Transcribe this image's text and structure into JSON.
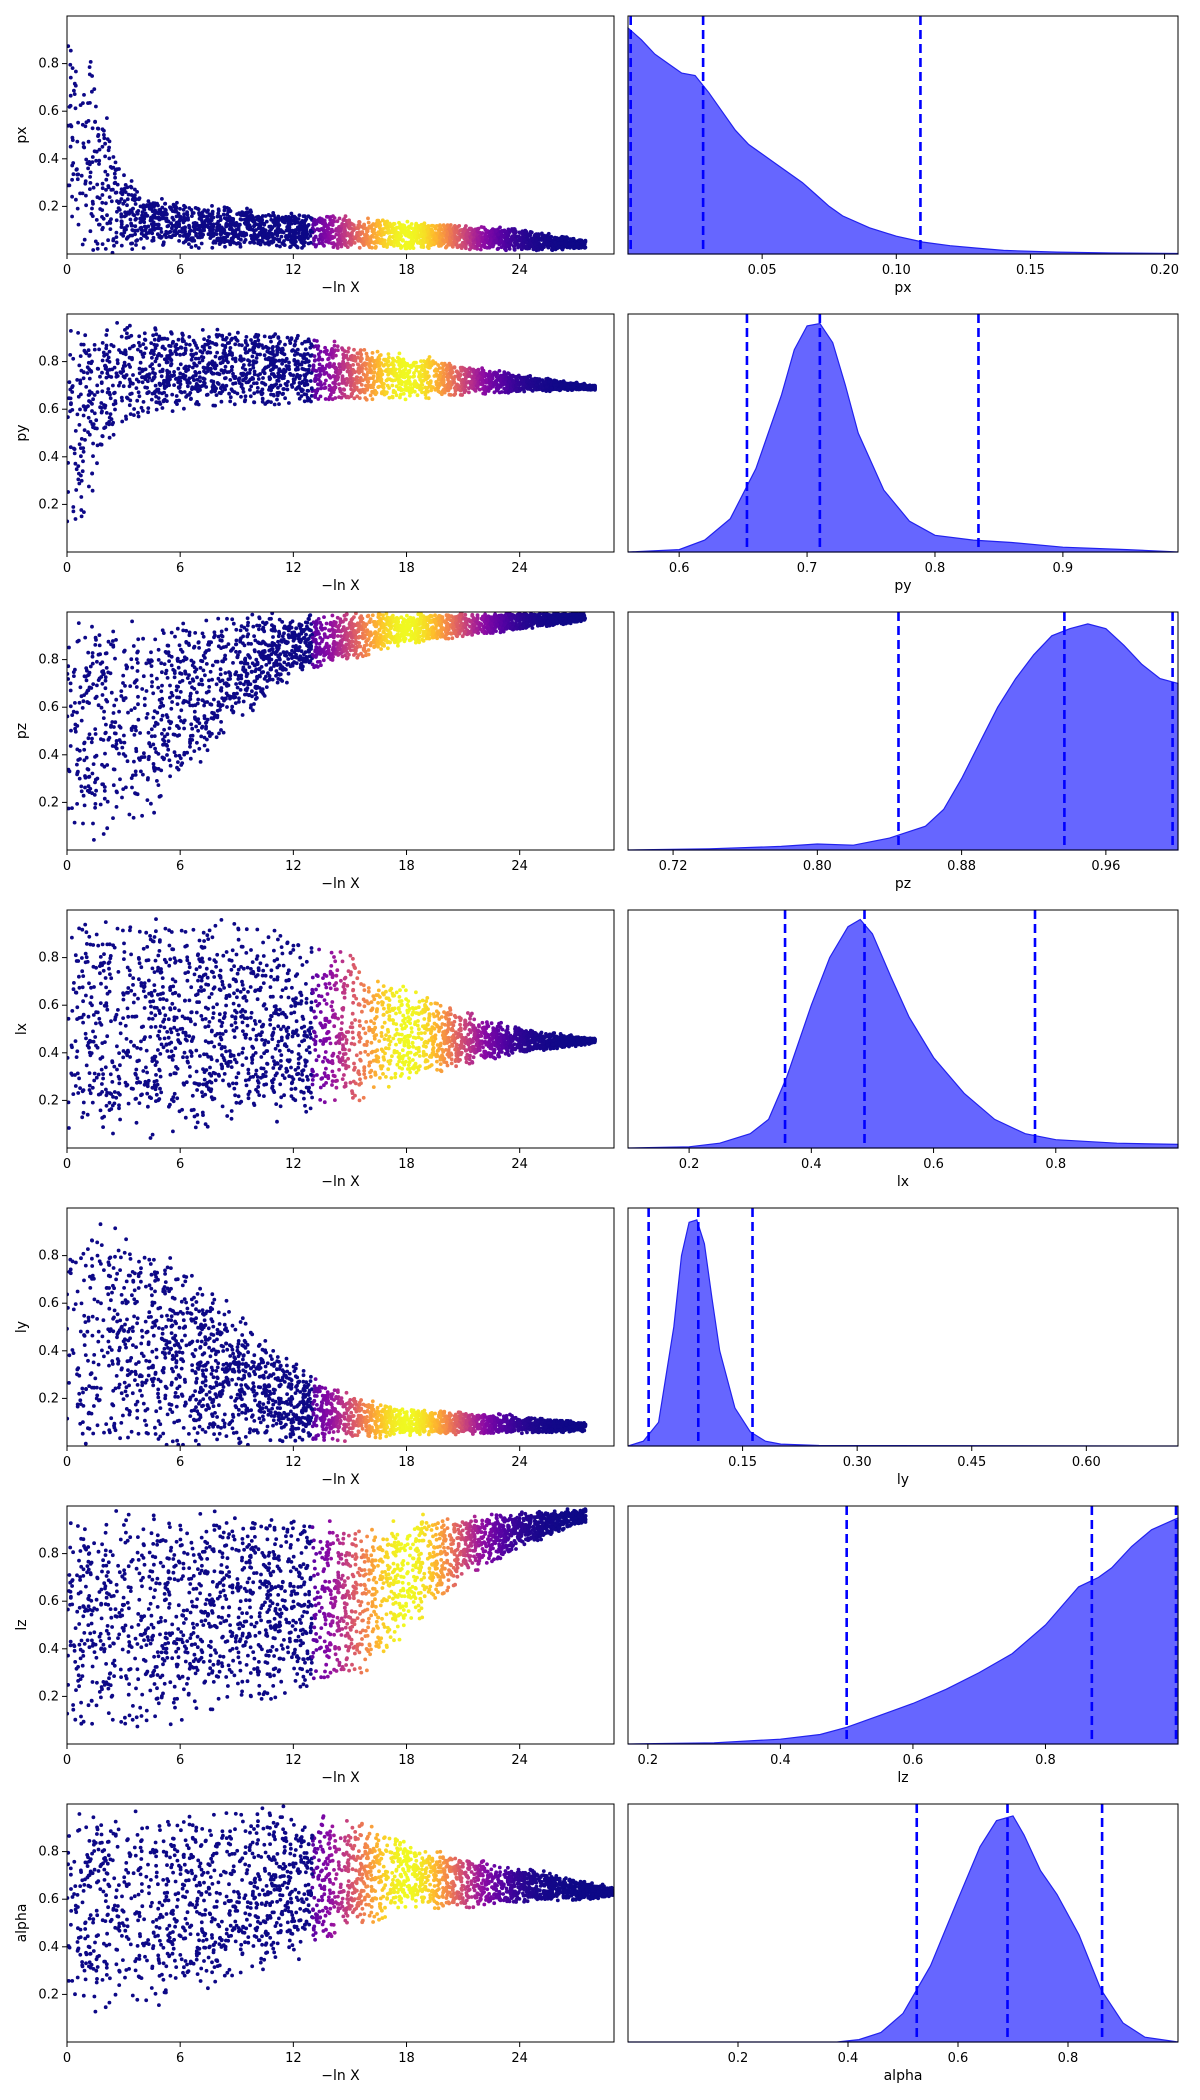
{
  "figure": {
    "description_rows": 7,
    "colors": {
      "posterior": "#3333ff",
      "posterior_edge": "#2222ee",
      "quantile_line": "#0000ff",
      "trace_cold": "#0d0887",
      "trace_hot": "#f0f921"
    }
  },
  "chart_data": [
    {
      "type": "scatter",
      "title": "",
      "xlabel": "−ln X",
      "ylabel": "px",
      "xlim": [
        0,
        29
      ],
      "ylim": [
        0,
        1
      ],
      "xticks": [
        0,
        6,
        12,
        18,
        24
      ],
      "yticks": [
        0.2,
        0.4,
        0.6,
        0.8
      ],
      "xtick_labels": [
        "0",
        "6",
        "12",
        "18",
        "24"
      ],
      "ytick_labels": [
        "0.2",
        "0.4",
        "0.6",
        "0.8"
      ],
      "trend": {
        "x": [
          0,
          1,
          2,
          3,
          4,
          6,
          12,
          18,
          24,
          27.5
        ],
        "center": [
          0.55,
          0.45,
          0.3,
          0.18,
          0.14,
          0.12,
          0.1,
          0.08,
          0.06,
          0.04
        ],
        "spread": [
          0.45,
          0.5,
          0.35,
          0.2,
          0.12,
          0.1,
          0.08,
          0.06,
          0.05,
          0.02
        ]
      },
      "peak_x": 18
    },
    {
      "type": "area",
      "title": "",
      "xlabel": "px",
      "ylabel": "",
      "xlim": [
        0,
        0.205
      ],
      "xticks": [
        0.05,
        0.1,
        0.15,
        0.2
      ],
      "xtick_labels": [
        "0.05",
        "0.10",
        "0.15",
        "0.20"
      ],
      "x": [
        0,
        0.005,
        0.01,
        0.015,
        0.02,
        0.025,
        0.03,
        0.035,
        0.04,
        0.045,
        0.05,
        0.055,
        0.06,
        0.065,
        0.07,
        0.075,
        0.08,
        0.09,
        0.1,
        0.11,
        0.12,
        0.13,
        0.14,
        0.16,
        0.18,
        0.205
      ],
      "density": [
        0.95,
        0.9,
        0.84,
        0.8,
        0.76,
        0.75,
        0.68,
        0.6,
        0.52,
        0.46,
        0.42,
        0.38,
        0.34,
        0.3,
        0.25,
        0.2,
        0.16,
        0.11,
        0.075,
        0.05,
        0.035,
        0.025,
        0.015,
        0.008,
        0.004,
        0.002
      ],
      "quantiles": [
        0.001,
        0.028,
        0.109
      ]
    },
    {
      "type": "scatter",
      "title": "",
      "xlabel": "−ln X",
      "ylabel": "py",
      "xlim": [
        0,
        29
      ],
      "ylim": [
        0,
        1
      ],
      "xticks": [
        0,
        6,
        12,
        18,
        24
      ],
      "yticks": [
        0.2,
        0.4,
        0.6,
        0.8
      ],
      "xtick_labels": [
        "0",
        "6",
        "12",
        "18",
        "24"
      ],
      "ytick_labels": [
        "0.2",
        "0.4",
        "0.6",
        "0.8"
      ],
      "trend": {
        "x": [
          0,
          1,
          2,
          3,
          4,
          6,
          12,
          18,
          24,
          28
        ],
        "center": [
          0.5,
          0.55,
          0.68,
          0.75,
          0.76,
          0.77,
          0.77,
          0.74,
          0.71,
          0.69
        ],
        "spread": [
          0.5,
          0.45,
          0.3,
          0.22,
          0.2,
          0.18,
          0.16,
          0.1,
          0.04,
          0.01
        ]
      },
      "peak_x": 18
    },
    {
      "type": "area",
      "title": "",
      "xlabel": "py",
      "ylabel": "",
      "xlim": [
        0.56,
        0.99
      ],
      "xticks": [
        0.6,
        0.7,
        0.8,
        0.9
      ],
      "xtick_labels": [
        "0.6",
        "0.7",
        "0.8",
        "0.9"
      ],
      "x": [
        0.56,
        0.6,
        0.62,
        0.64,
        0.66,
        0.68,
        0.69,
        0.7,
        0.71,
        0.72,
        0.73,
        0.74,
        0.76,
        0.78,
        0.8,
        0.83,
        0.86,
        0.9,
        0.95,
        0.99
      ],
      "density": [
        0.0,
        0.01,
        0.05,
        0.14,
        0.35,
        0.66,
        0.85,
        0.95,
        0.96,
        0.88,
        0.7,
        0.5,
        0.26,
        0.13,
        0.07,
        0.05,
        0.04,
        0.02,
        0.01,
        0.0
      ],
      "quantiles": [
        0.653,
        0.71,
        0.834
      ]
    },
    {
      "type": "scatter",
      "title": "",
      "xlabel": "−ln X",
      "ylabel": "pz",
      "xlim": [
        0,
        29
      ],
      "ylim": [
        0,
        1
      ],
      "xticks": [
        0,
        6,
        12,
        18,
        24
      ],
      "yticks": [
        0.2,
        0.4,
        0.6,
        0.8
      ],
      "xtick_labels": [
        "0",
        "6",
        "12",
        "18",
        "24"
      ],
      "ytick_labels": [
        "0.2",
        "0.4",
        "0.6",
        "0.8"
      ],
      "trend": {
        "x": [
          0,
          2,
          4,
          6,
          8,
          12,
          18,
          24,
          27.5
        ],
        "center": [
          0.5,
          0.52,
          0.55,
          0.62,
          0.72,
          0.86,
          0.93,
          0.96,
          0.98
        ],
        "spread": [
          0.5,
          0.48,
          0.44,
          0.38,
          0.28,
          0.14,
          0.07,
          0.04,
          0.02
        ]
      },
      "peak_x": 18
    },
    {
      "type": "area",
      "title": "",
      "xlabel": "pz",
      "ylabel": "",
      "xlim": [
        0.695,
        1.0
      ],
      "xticks": [
        0.72,
        0.8,
        0.88,
        0.96
      ],
      "xtick_labels": [
        "0.72",
        "0.80",
        "0.88",
        "0.96"
      ],
      "x": [
        0.695,
        0.74,
        0.78,
        0.8,
        0.82,
        0.84,
        0.86,
        0.87,
        0.88,
        0.89,
        0.9,
        0.91,
        0.92,
        0.93,
        0.94,
        0.95,
        0.96,
        0.97,
        0.98,
        0.99,
        1.0
      ],
      "density": [
        0.0,
        0.005,
        0.015,
        0.025,
        0.02,
        0.05,
        0.1,
        0.17,
        0.3,
        0.45,
        0.6,
        0.72,
        0.82,
        0.9,
        0.93,
        0.95,
        0.93,
        0.86,
        0.78,
        0.72,
        0.7
      ],
      "quantiles": [
        0.845,
        0.937,
        0.997
      ]
    },
    {
      "type": "scatter",
      "title": "",
      "xlabel": "−ln X",
      "ylabel": "lx",
      "xlim": [
        0,
        29
      ],
      "ylim": [
        0,
        1
      ],
      "xticks": [
        0,
        6,
        12,
        18,
        24
      ],
      "yticks": [
        0.2,
        0.4,
        0.6,
        0.8
      ],
      "xtick_labels": [
        "0",
        "6",
        "12",
        "18",
        "24"
      ],
      "ytick_labels": [
        "0.2",
        "0.4",
        "0.6",
        "0.8"
      ],
      "trend": {
        "x": [
          0,
          4,
          8,
          12,
          15,
          18,
          21,
          24,
          28
        ],
        "center": [
          0.5,
          0.5,
          0.52,
          0.52,
          0.5,
          0.48,
          0.46,
          0.45,
          0.45
        ],
        "spread": [
          0.5,
          0.48,
          0.46,
          0.42,
          0.34,
          0.22,
          0.12,
          0.06,
          0.01
        ]
      },
      "peak_x": 18
    },
    {
      "type": "area",
      "title": "",
      "xlabel": "lx",
      "ylabel": "",
      "xlim": [
        0.1,
        1.0
      ],
      "xticks": [
        0.2,
        0.4,
        0.6,
        0.8
      ],
      "xtick_labels": [
        "0.2",
        "0.4",
        "0.6",
        "0.8"
      ],
      "x": [
        0.1,
        0.2,
        0.25,
        0.3,
        0.33,
        0.36,
        0.4,
        0.43,
        0.46,
        0.48,
        0.5,
        0.53,
        0.56,
        0.6,
        0.65,
        0.7,
        0.75,
        0.8,
        0.9,
        1.0
      ],
      "density": [
        0.0,
        0.005,
        0.02,
        0.06,
        0.12,
        0.3,
        0.6,
        0.8,
        0.93,
        0.96,
        0.9,
        0.72,
        0.55,
        0.38,
        0.23,
        0.12,
        0.06,
        0.035,
        0.02,
        0.015
      ],
      "quantiles": [
        0.357,
        0.487,
        0.766
      ]
    },
    {
      "type": "scatter",
      "title": "",
      "xlabel": "−ln X",
      "ylabel": "ly",
      "xlim": [
        0,
        29
      ],
      "ylim": [
        0,
        1
      ],
      "xticks": [
        0,
        6,
        12,
        18,
        24
      ],
      "yticks": [
        0.2,
        0.4,
        0.6,
        0.8
      ],
      "xtick_labels": [
        "0",
        "6",
        "12",
        "18",
        "24"
      ],
      "ytick_labels": [
        "0.2",
        "0.4",
        "0.6",
        "0.8"
      ],
      "trend": {
        "x": [
          0,
          3,
          6,
          9,
          12,
          15,
          18,
          24,
          27.5
        ],
        "center": [
          0.5,
          0.45,
          0.38,
          0.28,
          0.18,
          0.12,
          0.1,
          0.09,
          0.08
        ],
        "spread": [
          0.5,
          0.5,
          0.42,
          0.3,
          0.18,
          0.1,
          0.06,
          0.04,
          0.02
        ]
      },
      "peak_x": 18
    },
    {
      "type": "area",
      "title": "",
      "xlabel": "ly",
      "ylabel": "",
      "xlim": [
        0.0,
        0.72
      ],
      "xticks": [
        0.15,
        0.3,
        0.45,
        0.6
      ],
      "xtick_labels": [
        "0.15",
        "0.30",
        "0.45",
        "0.60"
      ],
      "x": [
        0.0,
        0.02,
        0.04,
        0.06,
        0.07,
        0.08,
        0.09,
        0.1,
        0.11,
        0.12,
        0.14,
        0.16,
        0.18,
        0.2,
        0.25,
        0.72
      ],
      "density": [
        0.0,
        0.02,
        0.1,
        0.5,
        0.8,
        0.94,
        0.95,
        0.85,
        0.62,
        0.4,
        0.16,
        0.06,
        0.02,
        0.008,
        0.002,
        0.0
      ],
      "quantiles": [
        0.027,
        0.092,
        0.163
      ]
    },
    {
      "type": "scatter",
      "title": "",
      "xlabel": "−ln X",
      "ylabel": "lz",
      "xlim": [
        0,
        29
      ],
      "ylim": [
        0,
        1
      ],
      "xticks": [
        0,
        6,
        12,
        18,
        24
      ],
      "yticks": [
        0.2,
        0.4,
        0.6,
        0.8
      ],
      "xtick_labels": [
        "0",
        "6",
        "12",
        "18",
        "24"
      ],
      "ytick_labels": [
        "0.2",
        "0.4",
        "0.6",
        "0.8"
      ],
      "trend": {
        "x": [
          0,
          4,
          8,
          12,
          16,
          18,
          21,
          24,
          27.5
        ],
        "center": [
          0.5,
          0.52,
          0.55,
          0.58,
          0.62,
          0.72,
          0.83,
          0.9,
          0.96
        ],
        "spread": [
          0.5,
          0.48,
          0.45,
          0.4,
          0.34,
          0.25,
          0.14,
          0.08,
          0.03
        ]
      },
      "peak_x": 18
    },
    {
      "type": "area",
      "title": "",
      "xlabel": "lz",
      "ylabel": "",
      "xlim": [
        0.17,
        1.0
      ],
      "xticks": [
        0.2,
        0.4,
        0.6,
        0.8
      ],
      "xtick_labels": [
        "0.2",
        "0.4",
        "0.6",
        "0.8"
      ],
      "x": [
        0.17,
        0.3,
        0.4,
        0.46,
        0.5,
        0.55,
        0.6,
        0.65,
        0.7,
        0.75,
        0.8,
        0.85,
        0.88,
        0.9,
        0.93,
        0.96,
        1.0
      ],
      "density": [
        0.0,
        0.005,
        0.02,
        0.04,
        0.07,
        0.12,
        0.17,
        0.23,
        0.3,
        0.38,
        0.5,
        0.66,
        0.7,
        0.74,
        0.83,
        0.9,
        0.95
      ],
      "quantiles": [
        0.5,
        0.87,
        0.997
      ]
    },
    {
      "type": "scatter",
      "title": "",
      "xlabel": "−ln X",
      "ylabel": "alpha",
      "xlim": [
        0,
        29
      ],
      "ylim": [
        0,
        1
      ],
      "xticks": [
        0,
        6,
        12,
        18,
        24
      ],
      "yticks": [
        0.2,
        0.4,
        0.6,
        0.8
      ],
      "xtick_labels": [
        "0",
        "6",
        "12",
        "18",
        "24"
      ],
      "ytick_labels": [
        "0.2",
        "0.4",
        "0.6",
        "0.8"
      ],
      "trend": {
        "x": [
          0,
          6,
          12,
          15,
          18,
          21,
          24,
          27,
          29
        ],
        "center": [
          0.55,
          0.58,
          0.66,
          0.7,
          0.7,
          0.67,
          0.66,
          0.64,
          0.63
        ],
        "spread": [
          0.45,
          0.42,
          0.34,
          0.26,
          0.15,
          0.12,
          0.08,
          0.05,
          0.02
        ]
      },
      "peak_x": 18
    },
    {
      "type": "area",
      "title": "",
      "xlabel": "alpha",
      "ylabel": "",
      "xlim": [
        0.0,
        1.0
      ],
      "xticks": [
        0.2,
        0.4,
        0.6,
        0.8
      ],
      "xtick_labels": [
        "0.2",
        "0.4",
        "0.6",
        "0.8"
      ],
      "x": [
        0.0,
        0.38,
        0.42,
        0.46,
        0.5,
        0.55,
        0.6,
        0.64,
        0.67,
        0.7,
        0.72,
        0.75,
        0.78,
        0.82,
        0.86,
        0.9,
        0.94,
        1.0
      ],
      "density": [
        0.0,
        0.0,
        0.01,
        0.04,
        0.12,
        0.32,
        0.6,
        0.82,
        0.93,
        0.95,
        0.87,
        0.72,
        0.62,
        0.45,
        0.22,
        0.08,
        0.02,
        0.0
      ],
      "quantiles": [
        0.525,
        0.69,
        0.862
      ]
    }
  ]
}
